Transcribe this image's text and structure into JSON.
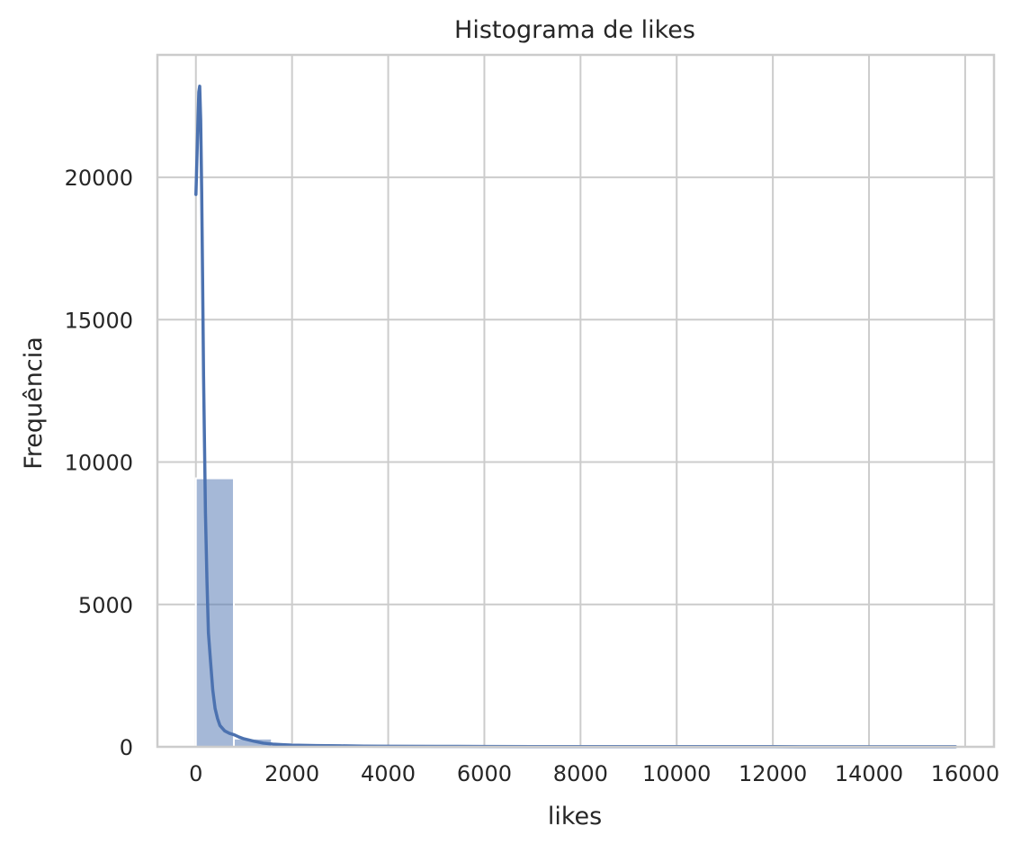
{
  "chart_data": {
    "type": "bar",
    "title": "Histograma de likes",
    "xlabel": "likes",
    "ylabel": "Frequência",
    "xlim": [
      -800,
      16600
    ],
    "ylim": [
      0,
      24300
    ],
    "x_ticks": [
      0,
      2000,
      4000,
      6000,
      8000,
      10000,
      12000,
      14000,
      16000
    ],
    "y_ticks": [
      0,
      5000,
      10000,
      15000,
      20000
    ],
    "grid": true,
    "bin_width": 790,
    "bins": [
      {
        "start": 0,
        "end": 790,
        "count": 9430
      },
      {
        "start": 790,
        "end": 1580,
        "count": 290
      },
      {
        "start": 1580,
        "end": 2370,
        "count": 90
      },
      {
        "start": 2370,
        "end": 3160,
        "count": 45
      },
      {
        "start": 3160,
        "end": 3950,
        "count": 30
      },
      {
        "start": 3950,
        "end": 4740,
        "count": 15
      },
      {
        "start": 4740,
        "end": 5530,
        "count": 10
      },
      {
        "start": 5530,
        "end": 6320,
        "count": 8
      },
      {
        "start": 6320,
        "end": 7110,
        "count": 5
      },
      {
        "start": 7110,
        "end": 7900,
        "count": 4
      },
      {
        "start": 7900,
        "end": 8690,
        "count": 3
      },
      {
        "start": 8690,
        "end": 9480,
        "count": 3
      },
      {
        "start": 9480,
        "end": 10270,
        "count": 2
      },
      {
        "start": 10270,
        "end": 11060,
        "count": 2
      },
      {
        "start": 11060,
        "end": 11850,
        "count": 1
      },
      {
        "start": 11850,
        "end": 12640,
        "count": 1
      },
      {
        "start": 12640,
        "end": 13430,
        "count": 1
      },
      {
        "start": 13430,
        "end": 14220,
        "count": 1
      },
      {
        "start": 14220,
        "end": 15010,
        "count": 1
      },
      {
        "start": 15010,
        "end": 15800,
        "count": 1
      }
    ],
    "kde": {
      "x": [
        0,
        20,
        40,
        60,
        80,
        100,
        120,
        140,
        160,
        180,
        200,
        230,
        260,
        300,
        350,
        400,
        450,
        500,
        600,
        700,
        800,
        900,
        1000,
        1200,
        1400,
        1600,
        1800,
        2000,
        2500,
        3000,
        3500,
        4000,
        5000,
        6000,
        7000,
        8000,
        10000,
        12000,
        14000,
        15800
      ],
      "y": [
        19400,
        20500,
        21800,
        23000,
        23200,
        22000,
        19500,
        16500,
        13000,
        10500,
        8200,
        5800,
        4000,
        3100,
        2000,
        1350,
        1000,
        750,
        560,
        470,
        420,
        340,
        280,
        200,
        130,
        95,
        75,
        60,
        45,
        35,
        25,
        20,
        15,
        12,
        10,
        8,
        6,
        5,
        4,
        3
      ]
    },
    "colors": {
      "bar": "#4c72b0",
      "bar_opacity": 0.5,
      "line": "#4c72b0",
      "grid": "#cccccc",
      "spine": "#cccccc",
      "text": "#262626"
    }
  }
}
